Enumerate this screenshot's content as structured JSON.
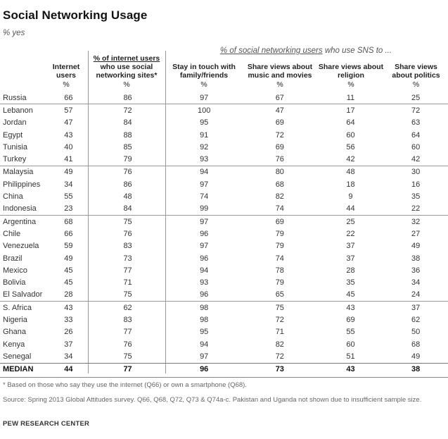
{
  "title": "Social Networking Usage",
  "subtitle": "% yes",
  "group_label_underlined": "% of social networking users",
  "group_label_rest": " who use SNS to ...",
  "headers": {
    "internet": {
      "label": "Internet users",
      "pct": "%"
    },
    "sns": {
      "label_underlined": "% of internet users",
      "label_rest": " who use social networking sites*",
      "pct": "%"
    },
    "stay": {
      "label": "Stay in touch with family/friends",
      "pct": "%"
    },
    "music": {
      "label": "Share views about music and movies",
      "pct": "%"
    },
    "religion": {
      "label": "Share views about religion",
      "pct": "%"
    },
    "politics": {
      "label": "Share views about politics",
      "pct": "%"
    }
  },
  "groups": [
    [
      {
        "country": "Russia",
        "v": [
          "66",
          "86",
          "97",
          "67",
          "11",
          "25"
        ]
      }
    ],
    [
      {
        "country": "Lebanon",
        "v": [
          "57",
          "72",
          "100",
          "47",
          "17",
          "72"
        ]
      },
      {
        "country": "Jordan",
        "v": [
          "47",
          "84",
          "95",
          "69",
          "64",
          "63"
        ]
      },
      {
        "country": "Egypt",
        "v": [
          "43",
          "88",
          "91",
          "72",
          "60",
          "64"
        ]
      },
      {
        "country": "Tunisia",
        "v": [
          "40",
          "85",
          "92",
          "69",
          "56",
          "60"
        ]
      },
      {
        "country": "Turkey",
        "v": [
          "41",
          "79",
          "93",
          "76",
          "42",
          "42"
        ]
      }
    ],
    [
      {
        "country": "Malaysia",
        "v": [
          "49",
          "76",
          "94",
          "80",
          "48",
          "30"
        ]
      },
      {
        "country": "Philippines",
        "v": [
          "34",
          "86",
          "97",
          "68",
          "18",
          "16"
        ]
      },
      {
        "country": "China",
        "v": [
          "55",
          "48",
          "74",
          "82",
          "9",
          "35"
        ]
      },
      {
        "country": "Indonesia",
        "v": [
          "23",
          "84",
          "99",
          "74",
          "44",
          "22"
        ]
      }
    ],
    [
      {
        "country": "Argentina",
        "v": [
          "68",
          "75",
          "97",
          "69",
          "25",
          "32"
        ]
      },
      {
        "country": "Chile",
        "v": [
          "66",
          "76",
          "96",
          "79",
          "22",
          "27"
        ]
      },
      {
        "country": "Venezuela",
        "v": [
          "59",
          "83",
          "97",
          "79",
          "37",
          "49"
        ]
      },
      {
        "country": "Brazil",
        "v": [
          "49",
          "73",
          "96",
          "74",
          "37",
          "38"
        ]
      },
      {
        "country": "Mexico",
        "v": [
          "45",
          "77",
          "94",
          "78",
          "28",
          "36"
        ]
      },
      {
        "country": "Bolivia",
        "v": [
          "45",
          "71",
          "93",
          "79",
          "35",
          "34"
        ]
      },
      {
        "country": "El Salvador",
        "v": [
          "28",
          "75",
          "96",
          "65",
          "45",
          "24"
        ]
      }
    ],
    [
      {
        "country": "S. Africa",
        "v": [
          "43",
          "62",
          "98",
          "75",
          "43",
          "37"
        ]
      },
      {
        "country": "Nigeria",
        "v": [
          "33",
          "83",
          "98",
          "72",
          "69",
          "62"
        ]
      },
      {
        "country": "Ghana",
        "v": [
          "26",
          "77",
          "95",
          "71",
          "55",
          "50"
        ]
      },
      {
        "country": "Kenya",
        "v": [
          "37",
          "76",
          "94",
          "82",
          "60",
          "68"
        ]
      },
      {
        "country": "Senegal",
        "v": [
          "34",
          "75",
          "97",
          "72",
          "51",
          "49"
        ]
      }
    ]
  ],
  "median": {
    "country": "MEDIAN",
    "v": [
      "44",
      "77",
      "96",
      "73",
      "43",
      "38"
    ]
  },
  "footnote": "* Based on those who say they use the internet (Q66) or own a smartphone (Q68).",
  "source": "Source: Spring 2013 Global Attitudes survey. Q66, Q68, Q72, Q73 & Q74a-c. Pakistan and Uganda not shown due to insufficient sample size.",
  "footer": "PEW RESEARCH CENTER"
}
